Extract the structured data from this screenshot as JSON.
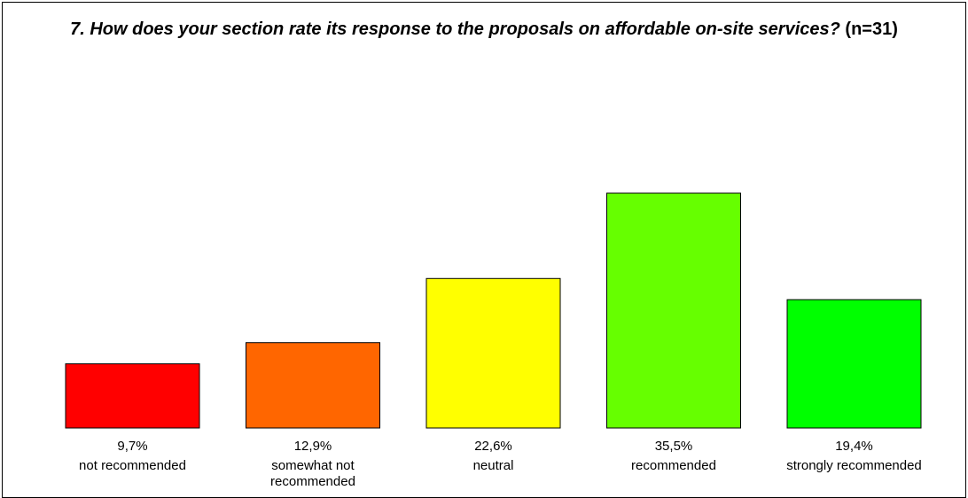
{
  "chart_data": {
    "type": "bar",
    "title": "7. How does your section rate its response to the proposals on affordable on-site services?",
    "title_suffix": "(n=31)",
    "categories": [
      "not recommended",
      "somewhat not recommended",
      "neutral",
      "recommended",
      "strongly recommended"
    ],
    "values": [
      9.7,
      12.9,
      22.6,
      35.5,
      19.4
    ],
    "value_labels": [
      "9,7%",
      "12,9%",
      "22,6%",
      "35,5%",
      "19,4%"
    ],
    "colors": [
      "#ff0000",
      "#ff6600",
      "#ffff00",
      "#66ff00",
      "#00ff00"
    ],
    "ylim": [
      0,
      40
    ],
    "grid": false,
    "legend": "none",
    "xlabel": "",
    "ylabel": ""
  }
}
